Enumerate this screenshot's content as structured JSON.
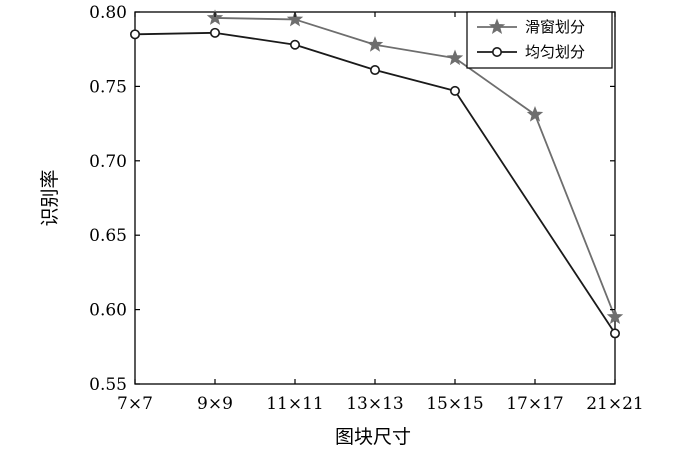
{
  "chart_data": {
    "type": "line",
    "title": "",
    "xlabel": "图块尺寸",
    "ylabel": "识别率",
    "categories": [
      "7×7",
      "9×9",
      "11×11",
      "13×13",
      "15×15",
      "17×17",
      "21×21"
    ],
    "ylim": [
      0.55,
      0.8
    ],
    "yticks": [
      "0.55",
      "0.60",
      "0.65",
      "0.70",
      "0.75",
      "0.80"
    ],
    "grid": false,
    "legend_position": "top-right",
    "series": [
      {
        "name": "滑窗划分",
        "marker": "star",
        "color": "#6e6e6e",
        "values": [
          null,
          0.796,
          0.795,
          0.778,
          0.769,
          0.731,
          0.595
        ]
      },
      {
        "name": "均匀划分",
        "marker": "circle",
        "color": "#1a1a1a",
        "values": [
          0.785,
          0.786,
          0.778,
          0.761,
          0.747,
          null,
          0.584
        ]
      }
    ]
  }
}
